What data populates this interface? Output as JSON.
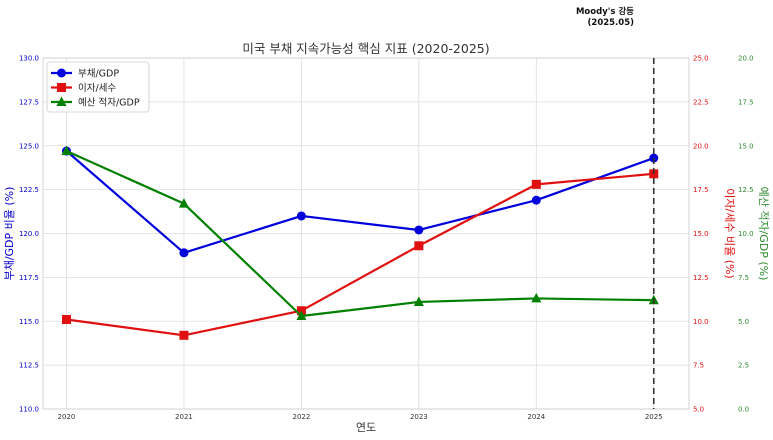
{
  "chart_data": {
    "type": "line",
    "title": "미국 부채 지속가능성 핵심 지표 (2020-2025)",
    "xlabel": "연도",
    "x": [
      2020,
      2021,
      2022,
      2023,
      2024,
      2025
    ],
    "xticks": [
      "2020",
      "2021",
      "2022",
      "2023",
      "2024",
      "2025"
    ],
    "grid": true,
    "legend_position": "top-left",
    "axes": {
      "left": {
        "label": "부채/GDP 비율 (%)",
        "ylim": [
          110.0,
          130.0
        ],
        "ticks": [
          "110.0",
          "112.5",
          "115.0",
          "117.5",
          "120.0",
          "122.5",
          "125.0",
          "127.5",
          "130.0"
        ],
        "color": "#0000cc"
      },
      "right1": {
        "label": "이자/세수 비율 (%)",
        "ylim": [
          5.0,
          25.0
        ],
        "ticks": [
          "5.0",
          "7.5",
          "10.0",
          "12.5",
          "15.0",
          "17.5",
          "20.0",
          "22.5",
          "25.0"
        ],
        "color": "#e01010"
      },
      "right2": {
        "label": "예산 적자/GDP (%)",
        "ylim": [
          0.0,
          20.0
        ],
        "ticks": [
          "0.0",
          "2.5",
          "5.0",
          "7.5",
          "10.0",
          "12.5",
          "15.0",
          "17.5",
          "20.0"
        ],
        "color": "#2e8b2e"
      }
    },
    "series": [
      {
        "name": "부채/GDP",
        "axis": "left",
        "color": "#0000dd",
        "marker": "circle",
        "values": [
          124.7,
          118.9,
          121.0,
          120.2,
          121.9,
          124.3
        ]
      },
      {
        "name": "이자/세수",
        "axis": "right1",
        "color": "#e01010",
        "marker": "square",
        "values": [
          10.1,
          9.2,
          10.6,
          14.3,
          17.8,
          18.4
        ]
      },
      {
        "name": "예산 적자/GDP",
        "axis": "right2",
        "color": "#008000",
        "marker": "triangle",
        "values": [
          14.7,
          11.7,
          5.3,
          6.1,
          6.3,
          6.2
        ]
      }
    ],
    "annotation": {
      "x": 2025,
      "line1": "Moody's 강등",
      "line2": "(2025.05)",
      "style": "dashed-vertical-line"
    }
  }
}
